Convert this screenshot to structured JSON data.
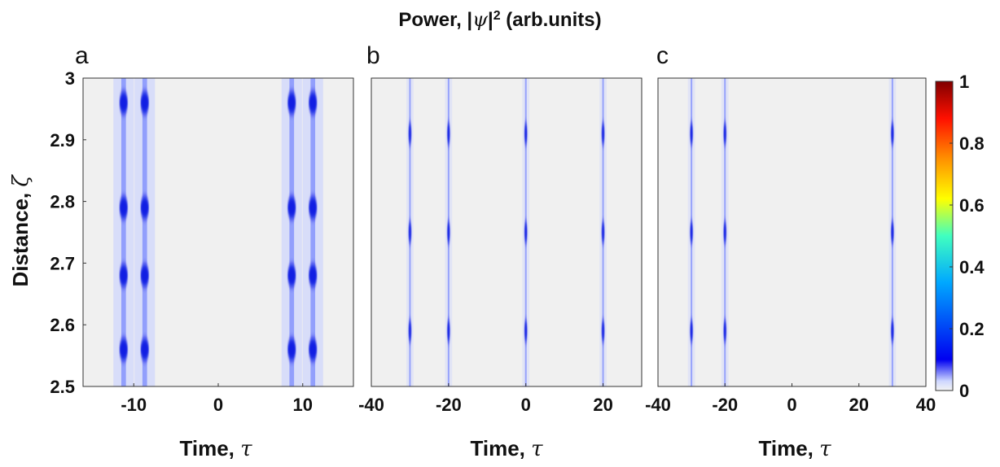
{
  "figure": {
    "title_prefix": "Power, |",
    "title_symbol": "ψ",
    "title_exp": "2",
    "title_suffix": " (arb.units)"
  },
  "chart_data": [
    {
      "type": "heatmap",
      "panel_label": "a",
      "xlabel_prefix": "Time, ",
      "xlabel_symbol": "τ",
      "ylabel_prefix": "Distance, ",
      "ylabel_symbol": "ζ",
      "xlim": [
        -16,
        16
      ],
      "ylim": [
        2.5,
        3.0
      ],
      "xticks": [
        -10,
        0,
        10
      ],
      "yticks": [
        2.5,
        2.6,
        2.7,
        2.8,
        2.9,
        3
      ],
      "pulse_positions": [
        -11.2,
        -8.7,
        8.7,
        11.2
      ],
      "pulse_width": 0.55,
      "peak_distances": [
        2.56,
        2.68,
        2.79,
        2.96
      ],
      "peak_intensity": 0.22,
      "background_intensity": 0.05
    },
    {
      "type": "heatmap",
      "panel_label": "b",
      "xlabel_prefix": "Time, ",
      "xlabel_symbol": "τ",
      "xlim": [
        -40,
        30
      ],
      "ylim": [
        2.5,
        3.0
      ],
      "xticks": [
        -40,
        -20,
        0,
        20
      ],
      "pulse_positions": [
        -30,
        -20,
        0,
        20
      ],
      "pulse_width": 0.35,
      "peak_distances": [
        2.59,
        2.75,
        2.91
      ],
      "peak_intensity": 0.2,
      "background_intensity": 0.03
    },
    {
      "type": "heatmap",
      "panel_label": "c",
      "xlabel_prefix": "Time, ",
      "xlabel_symbol": "τ",
      "xlim": [
        -40,
        40
      ],
      "ylim": [
        2.5,
        3.0
      ],
      "xticks": [
        -40,
        -20,
        0,
        20,
        40
      ],
      "pulse_positions": [
        -30,
        -20,
        30
      ],
      "pulse_width": 0.35,
      "peak_distances": [
        2.59,
        2.75,
        2.91
      ],
      "peak_intensity": 0.2,
      "background_intensity": 0.03
    }
  ],
  "colorbar": {
    "ticks": [
      0,
      0.2,
      0.4,
      0.6,
      0.8,
      1
    ],
    "range": [
      0,
      1
    ],
    "colormap": [
      "#ffffff",
      "#0000ff",
      "#00ffff",
      "#ffff00",
      "#ff0000",
      "#800000"
    ]
  }
}
